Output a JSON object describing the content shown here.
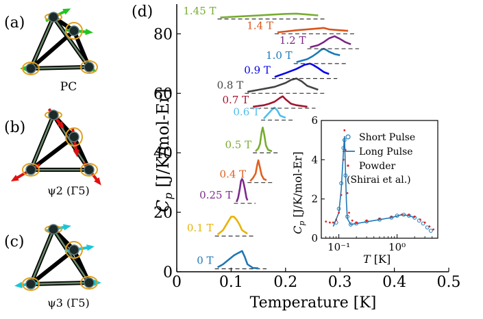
{
  "panel_labels": {
    "a": "(a)",
    "b": "(b)",
    "c": "(c)",
    "d": "(d)"
  },
  "structure_labels": {
    "a": "PC",
    "b": "ψ2 (Γ5)",
    "c": "ψ3 (Γ5)"
  },
  "arrow_colors": {
    "a": "#22c422",
    "b": "#e01010",
    "c": "#19c6d8"
  },
  "chart_data": [
    {
      "type": "line",
      "title": "",
      "xlabel": "Temperature [K]",
      "ylabel": "Cp [J/K/mol-Er]",
      "xlim": [
        0,
        0.5
      ],
      "ylim": [
        0,
        90
      ],
      "xticks": [
        "0",
        "0.1",
        "0.2",
        "0.3",
        "0.4",
        "0.5"
      ],
      "yticks": [
        "0",
        "20",
        "40",
        "60",
        "80"
      ],
      "note": "curves vertically offset by field; dashed line marks each baseline",
      "series": [
        {
          "name": "0 T",
          "color": "#1f77b4",
          "offset": 1,
          "x": [
            0.075,
            0.085,
            0.095,
            0.105,
            0.11,
            0.115,
            0.12,
            0.125,
            0.13,
            0.14,
            0.15
          ],
          "y": [
            0.5,
            1.5,
            3,
            4.5,
            5,
            5.5,
            6,
            4,
            1.5,
            0.3,
            0.2
          ]
        },
        {
          "name": "0.1 T",
          "color": "#e8b200",
          "offset": 12,
          "x": [
            0.075,
            0.085,
            0.095,
            0.1,
            0.105,
            0.11,
            0.115,
            0.12,
            0.13
          ],
          "y": [
            0.5,
            2,
            5,
            6.5,
            6.5,
            5.5,
            4,
            2,
            0.8
          ]
        },
        {
          "name": "0.25 T",
          "color": "#7b2a8a",
          "offset": 23,
          "x": [
            0.11,
            0.113,
            0.116,
            0.118,
            0.12,
            0.122,
            0.125,
            0.128,
            0.13
          ],
          "y": [
            0.5,
            2,
            5,
            7.5,
            8.2,
            7.5,
            5,
            2,
            1
          ]
        },
        {
          "name": "0.4 T",
          "color": "#e06020",
          "offset": 30,
          "x": [
            0.135,
            0.14,
            0.145,
            0.148,
            0.15,
            0.153,
            0.156,
            0.16,
            0.165
          ],
          "y": [
            0.5,
            1.5,
            3,
            6,
            7.5,
            5,
            2.5,
            1.2,
            0.8
          ]
        },
        {
          "name": "0.5 T",
          "color": "#77ac30",
          "offset": 40,
          "x": [
            0.145,
            0.15,
            0.153,
            0.156,
            0.158,
            0.161,
            0.164,
            0.168,
            0.175
          ],
          "y": [
            0.5,
            1.5,
            3,
            7,
            8.5,
            6,
            2.5,
            1,
            0.5
          ]
        },
        {
          "name": "0.6 T",
          "color": "#4dbeee",
          "offset": 51,
          "x": [
            0.16,
            0.165,
            0.17,
            0.175,
            0.18,
            0.185,
            0.19,
            0.2
          ],
          "y": [
            0.5,
            1.5,
            2.5,
            3.5,
            4.2,
            3.2,
            1.5,
            0.8
          ]
        },
        {
          "name": "0.7 T",
          "color": "#a2142f",
          "offset": 55,
          "x": [
            0.14,
            0.16,
            0.17,
            0.18,
            0.19,
            0.195,
            0.2,
            0.21,
            0.22,
            0.24
          ],
          "y": [
            0.5,
            1,
            1.5,
            2.2,
            3.5,
            4,
            3,
            1.5,
            1,
            0.5
          ]
        },
        {
          "name": "0.8 T",
          "color": "#444444",
          "offset": 60,
          "x": [
            0.13,
            0.16,
            0.18,
            0.2,
            0.21,
            0.22,
            0.23,
            0.24,
            0.26
          ],
          "y": [
            0.5,
            1.5,
            2.2,
            3.5,
            4.5,
            5,
            4,
            2.5,
            1.2
          ]
        },
        {
          "name": "0.9 T",
          "color": "#0000ee",
          "offset": 65,
          "x": [
            0.18,
            0.2,
            0.22,
            0.235,
            0.245,
            0.25,
            0.26,
            0.27,
            0.28
          ],
          "y": [
            0.5,
            1.8,
            3.2,
            4.6,
            5,
            4.6,
            3.5,
            2.2,
            1.5
          ]
        },
        {
          "name": "1.0 T",
          "color": "#1a7ab8",
          "offset": 70,
          "x": [
            0.22,
            0.24,
            0.25,
            0.26,
            0.265,
            0.27,
            0.275,
            0.28,
            0.29,
            0.3
          ],
          "y": [
            0.5,
            1.5,
            2.5,
            3.8,
            4.6,
            5,
            4.6,
            4,
            3.2,
            2.8
          ]
        },
        {
          "name": "1.2 T",
          "color": "#7a2585",
          "offset": 75,
          "x": [
            0.245,
            0.26,
            0.27,
            0.28,
            0.29,
            0.3,
            0.31,
            0.32
          ],
          "y": [
            0.5,
            1.2,
            2.2,
            3.5,
            4.2,
            3.3,
            2.2,
            1.5
          ]
        },
        {
          "name": "1.4 T",
          "color": "#d95319",
          "offset": 80,
          "x": [
            0.185,
            0.2,
            0.22,
            0.24,
            0.26,
            0.27,
            0.28,
            0.3,
            0.315
          ],
          "y": [
            0.5,
            0.8,
            1.2,
            1.5,
            1.8,
            2,
            1.5,
            1.2,
            1
          ]
        },
        {
          "name": "1.45 T",
          "color": "#77ac30",
          "offset": 85,
          "x": [
            0.08,
            0.12,
            0.16,
            0.2,
            0.22,
            0.24,
            0.26
          ],
          "y": [
            0.5,
            0.9,
            1.3,
            1.7,
            1.8,
            1.5,
            1.2
          ]
        }
      ]
    },
    {
      "type": "line",
      "title": "",
      "xlabel": "T [K]",
      "ylabel": "Cp [J/K/mol-Er]",
      "xscale": "log",
      "xlim": [
        0.05,
        5
      ],
      "ylim": [
        0,
        6
      ],
      "xticks": [
        "10⁻¹",
        "10⁰"
      ],
      "yticks": [
        "0",
        "2",
        "4",
        "6"
      ],
      "legend_position": "top-right",
      "series": [
        {
          "name": "Short Pulse",
          "style": "open circles",
          "color": "#1f77b4",
          "x": [
            0.09,
            0.1,
            0.11,
            0.12,
            0.125,
            0.13,
            0.14,
            0.16,
            0.2,
            0.3,
            0.5,
            0.8,
            1.0,
            1.3,
            1.6,
            2.0,
            2.4,
            2.8,
            3.3,
            3.8
          ],
          "y": [
            0.8,
            1.5,
            2.8,
            4.6,
            5.0,
            3.2,
            1.1,
            0.7,
            0.75,
            0.85,
            0.95,
            1.05,
            1.15,
            1.2,
            1.15,
            1.05,
            0.9,
            0.75,
            0.55,
            0.38
          ]
        },
        {
          "name": "Long Pulse",
          "style": "solid line",
          "color": "#1f77b4",
          "x": [
            0.08,
            0.1,
            0.11,
            0.12,
            0.125,
            0.13,
            0.135,
            0.14,
            0.16,
            0.2,
            0.4,
            0.8,
            1.2,
            1.6,
            2.0
          ],
          "y": [
            0.6,
            1.3,
            2.5,
            4.4,
            5.2,
            3.4,
            1.8,
            1.0,
            0.7,
            0.75,
            0.9,
            1.05,
            1.2,
            1.15,
            1.05
          ]
        },
        {
          "name": "Powder\n(Shirai et al.)",
          "legend_lines": [
            "Powder",
            "(Shirai et al.)"
          ],
          "style": "red dots",
          "color": "#e02020",
          "x": [
            0.06,
            0.07,
            0.08,
            0.09,
            0.1,
            0.11,
            0.12,
            0.125,
            0.13,
            0.14,
            0.15,
            0.17,
            0.2,
            0.3,
            0.5,
            0.8,
            1.2,
            1.6,
            2.0,
            2.5,
            3.0,
            3.6,
            4.2
          ],
          "y": [
            0.85,
            0.8,
            0.8,
            0.95,
            1.3,
            2.2,
            4.0,
            5.5,
            4.5,
            2.3,
            1.3,
            0.9,
            0.8,
            0.9,
            1.0,
            1.1,
            1.2,
            1.2,
            1.1,
            0.95,
            0.8,
            0.6,
            0.45
          ]
        }
      ]
    }
  ]
}
